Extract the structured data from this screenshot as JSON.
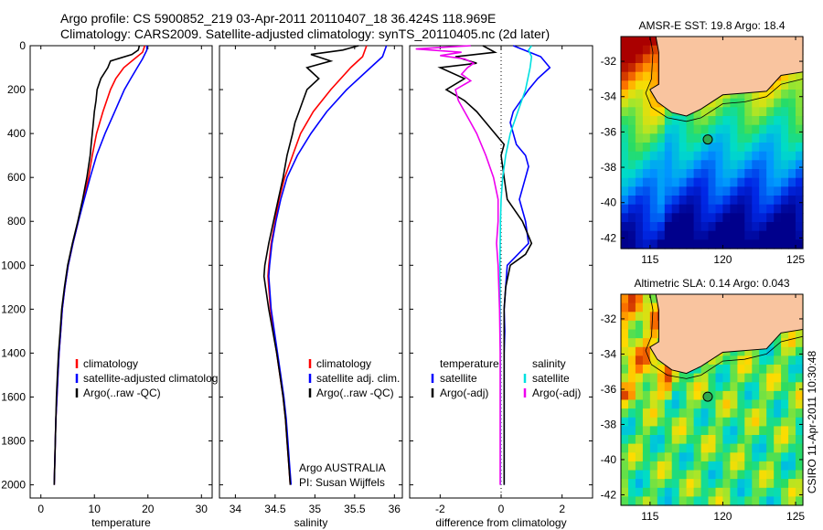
{
  "header": {
    "line1": "Argo profile: CS 5900852_219 03-Apr-2011 20110407_18 36.424S 118.969E",
    "line2": "Climatology: CARS2009. Satellite-adjusted climatology: synTS_20110405.nc (2d later)"
  },
  "chart_data": [
    {
      "type": "line",
      "id": "temperature",
      "xlabel": "temperature",
      "ylabel": "",
      "xlim": [
        -2,
        32
      ],
      "ylim": [
        2060,
        0
      ],
      "xticks": [
        0,
        10,
        20,
        30
      ],
      "yticks": [
        0,
        200,
        400,
        600,
        800,
        1000,
        1200,
        1400,
        1600,
        1800,
        2000
      ],
      "legend": [
        "climatology",
        "satellite-adjusted climatolog",
        "Argo(..raw -QC)"
      ],
      "series": [
        {
          "name": "climatology",
          "color": "#ff0000",
          "depth": [
            0,
            30,
            60,
            100,
            150,
            200,
            300,
            400,
            500,
            600,
            700,
            800,
            900,
            1000,
            1100,
            1200,
            1300,
            1400,
            1500,
            1600,
            1700,
            1800,
            1900,
            2000
          ],
          "values": [
            19.4,
            19.0,
            17.5,
            15.5,
            14.0,
            13.0,
            11.6,
            10.4,
            9.6,
            8.9,
            8.0,
            7.0,
            6.0,
            5.1,
            4.5,
            4.0,
            3.7,
            3.4,
            3.2,
            3.0,
            2.8,
            2.7,
            2.6,
            2.5
          ]
        },
        {
          "name": "satellite-adjusted climatology",
          "color": "#0000ff",
          "depth": [
            0,
            20,
            60,
            100,
            150,
            200,
            300,
            400,
            500,
            600,
            700,
            800,
            900,
            1000,
            1100,
            1200,
            1300,
            1400,
            1500,
            1600,
            1700,
            1800,
            1900,
            2000
          ],
          "values": [
            19.8,
            19.8,
            19.0,
            18.0,
            16.8,
            15.6,
            13.8,
            12.0,
            10.4,
            9.2,
            8.1,
            7.0,
            6.0,
            5.1,
            4.5,
            4.0,
            3.7,
            3.4,
            3.2,
            3.0,
            2.8,
            2.7,
            2.6,
            2.5
          ]
        },
        {
          "name": "Argo(..raw -QC)",
          "color": "#000000",
          "depth": [
            0,
            20,
            40,
            70,
            100,
            150,
            200,
            250,
            300,
            350,
            400,
            450,
            500,
            600,
            700,
            800,
            900,
            1000,
            1100,
            1200,
            1300,
            1400,
            1500,
            1600,
            1700,
            1800,
            1900,
            2000
          ],
          "values": [
            18.4,
            18.2,
            17.0,
            13.0,
            12.5,
            11.2,
            10.5,
            10.3,
            10.0,
            9.8,
            9.6,
            9.4,
            9.2,
            8.6,
            7.8,
            6.9,
            5.9,
            5.0,
            4.4,
            3.9,
            3.6,
            3.3,
            3.1,
            2.9,
            2.8,
            2.7,
            2.6,
            2.5
          ]
        }
      ]
    },
    {
      "type": "line",
      "id": "salinity",
      "xlabel": "salinity",
      "ylabel": "",
      "xlim": [
        33.8,
        36.1
      ],
      "ylim": [
        2060,
        0
      ],
      "xticks": [
        34,
        34.5,
        35,
        35.5,
        36
      ],
      "xticklabels": [
        "34",
        "34.5",
        "35",
        "35.5",
        "36"
      ],
      "legend": [
        "climatology",
        "satellite adj. clim.",
        "Argo(..raw -QC)"
      ],
      "annotation": [
        "Argo AUSTRALIA",
        "PI: Susan Wijffels"
      ],
      "series": [
        {
          "name": "climatology",
          "color": "#ff0000",
          "depth": [
            0,
            50,
            100,
            200,
            300,
            400,
            500,
            600,
            700,
            800,
            900,
            1000,
            1050,
            1100,
            1200,
            1300,
            1400,
            1500,
            1600,
            1700,
            1800,
            1900,
            2000
          ],
          "values": [
            35.65,
            35.6,
            35.45,
            35.2,
            34.98,
            34.82,
            34.72,
            34.62,
            34.55,
            34.5,
            34.45,
            34.42,
            34.41,
            34.42,
            34.44,
            34.48,
            34.52,
            34.56,
            34.6,
            34.63,
            34.65,
            34.67,
            34.69
          ]
        },
        {
          "name": "satellite adj. clim.",
          "color": "#0000ff",
          "depth": [
            0,
            50,
            100,
            200,
            300,
            400,
            500,
            600,
            700,
            800,
            900,
            1000,
            1050,
            1100,
            1200,
            1300,
            1400,
            1500,
            1600,
            1700,
            1800,
            1900,
            2000
          ],
          "values": [
            35.9,
            35.85,
            35.7,
            35.4,
            35.15,
            34.95,
            34.78,
            34.65,
            34.57,
            34.51,
            34.46,
            34.43,
            34.42,
            34.43,
            34.45,
            34.49,
            34.53,
            34.57,
            34.61,
            34.64,
            34.66,
            34.68,
            34.7
          ]
        },
        {
          "name": "Argo(..raw -QC)",
          "color": "#000000",
          "depth": [
            0,
            20,
            40,
            70,
            100,
            150,
            200,
            250,
            300,
            350,
            400,
            500,
            600,
            700,
            800,
            900,
            1000,
            1050,
            1100,
            1200,
            1300,
            1400,
            1500,
            1600,
            1700,
            1800,
            1900,
            2000
          ],
          "values": [
            35.55,
            35.35,
            34.95,
            35.2,
            34.9,
            35.05,
            34.9,
            34.85,
            34.8,
            34.75,
            34.72,
            34.65,
            34.6,
            34.54,
            34.48,
            34.42,
            34.37,
            34.36,
            34.38,
            34.42,
            34.47,
            34.52,
            34.56,
            34.6,
            34.63,
            34.65,
            34.67,
            34.69
          ]
        }
      ]
    },
    {
      "type": "line",
      "id": "difference",
      "xlabel": "difference from climatology",
      "ylabel": "",
      "xlim": [
        -3,
        3
      ],
      "ylim": [
        2060,
        0
      ],
      "xticks": [
        -2,
        0,
        2
      ],
      "legend_left": [
        "temperature",
        "satellite",
        "Argo(-adj)"
      ],
      "legend_right": [
        "salinity",
        "satellite",
        "Argo(-adj)"
      ],
      "series": [
        {
          "name": "temperature satellite",
          "color": "#0000ff",
          "depth": [
            0,
            50,
            100,
            150,
            200,
            300,
            350,
            400,
            450,
            500,
            550,
            600,
            700,
            800,
            900,
            1000,
            1100,
            1200,
            1300,
            1400,
            1500,
            1600,
            1700,
            1800,
            1900,
            2000
          ],
          "values": [
            0.4,
            1.3,
            1.6,
            1.2,
            0.9,
            0.4,
            0.3,
            0.4,
            0.5,
            0.8,
            0.9,
            0.8,
            0.6,
            0.8,
            0.9,
            0.2,
            0.15,
            0.1,
            0.12,
            0.1,
            0.1,
            0.1,
            0.1,
            0.1,
            0.1,
            0.1
          ]
        },
        {
          "name": "temperature Argo(-adj)",
          "color": "#000000",
          "depth": [
            0,
            30,
            50,
            80,
            100,
            150,
            200,
            250,
            300,
            350,
            400,
            450,
            500,
            600,
            700,
            800,
            900,
            950,
            1000,
            1100,
            1200,
            1400,
            1600,
            1800,
            2000
          ],
          "values": [
            -0.6,
            -0.2,
            -1.5,
            -0.8,
            -2.0,
            -1.2,
            -1.8,
            -1.2,
            -0.8,
            -0.5,
            -0.2,
            0.1,
            0.0,
            0.1,
            0.2,
            0.7,
            1.0,
            0.8,
            0.3,
            0.15,
            0.1,
            0.1,
            0.1,
            0.1,
            0.1
          ]
        },
        {
          "name": "salinity satellite",
          "color": "#00e0e0",
          "depth": [
            0,
            20,
            50,
            100,
            200,
            300,
            400,
            500,
            600,
            700,
            800,
            900,
            1000,
            1200,
            1400,
            1600,
            1800,
            2000
          ],
          "values": [
            1.0,
            0.9,
            1.0,
            0.95,
            0.8,
            0.55,
            0.3,
            0.15,
            0.05,
            0.0,
            -0.02,
            -0.03,
            -0.04,
            -0.03,
            -0.02,
            -0.02,
            -0.02,
            -0.02
          ]
        },
        {
          "name": "salinity Argo(-adj)",
          "color": "#ee00ee",
          "depth": [
            0,
            15,
            30,
            45,
            60,
            80,
            100,
            130,
            160,
            200,
            250,
            300,
            350,
            400,
            500,
            600,
            700,
            800,
            900,
            1000,
            1200,
            1400,
            1600,
            1800,
            2000
          ],
          "values": [
            -1.0,
            -2.8,
            -1.3,
            -2.0,
            -1.2,
            -0.9,
            -1.1,
            -1.3,
            -1.0,
            -1.5,
            -1.4,
            -1.2,
            -1.0,
            -0.8,
            -0.5,
            -0.25,
            -0.1,
            -0.1,
            -0.15,
            -0.1,
            -0.05,
            -0.03,
            -0.03,
            -0.03,
            -0.03
          ]
        }
      ]
    }
  ],
  "maps": [
    {
      "title": "AMSR-E SST: 19.8 Argo: 18.4",
      "colormap": "sst",
      "xticks": [
        115,
        120,
        125
      ],
      "yticks": [
        -32,
        -34,
        -36,
        -38,
        -40,
        -42
      ],
      "float_lon": 118.969,
      "float_lat": -36.424
    },
    {
      "title": "Altimetric SLA: 0.14 Argo: 0.043",
      "colormap": "sla",
      "xticks": [
        115,
        120,
        125
      ],
      "yticks": [
        -32,
        -34,
        -36,
        -38,
        -40,
        -42
      ],
      "float_lon": 118.969,
      "float_lat": -36.424
    }
  ],
  "footer": {
    "stamp": "CSIRO 11-Apr-2011 10:30:48"
  },
  "colors": {
    "red": "#ff0000",
    "blue": "#0000ff",
    "black": "#000000",
    "cyan": "#00e0e0",
    "magenta": "#ee00ee",
    "land": "#f9c49f",
    "float": "#2fa84f"
  }
}
